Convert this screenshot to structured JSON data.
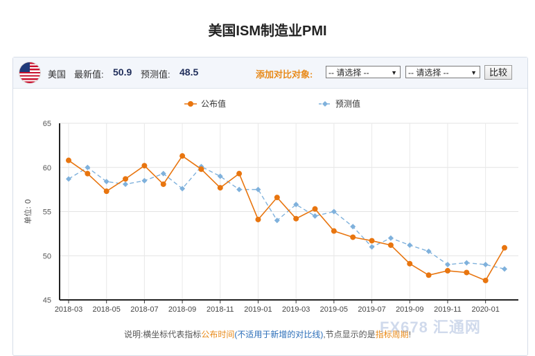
{
  "page": {
    "title": "美国ISM制造业PMI"
  },
  "toolbar": {
    "country": "美国",
    "latest_label": "最新值:",
    "latest_value": "50.9",
    "forecast_label": "预测值:",
    "forecast_value": "48.5",
    "compare_label": "添加对比对象:",
    "select1": "-- 请选择 --",
    "select2": "-- 请选择 --",
    "compare_button": "比较"
  },
  "footnote": {
    "prefix": "说明:横坐标代表指标",
    "highlight1": "公布时间",
    "paren": "(不适用于新增的对比线)",
    "middle": ",节点显示的是",
    "highlight2": "指标周期",
    "suffix": "!"
  },
  "watermark": "FX678 汇通网",
  "chart_data": {
    "type": "line",
    "ylabel": "单位: 0",
    "ylim": [
      45,
      65
    ],
    "yticks": [
      45,
      50,
      55,
      60,
      65
    ],
    "x": [
      "2018-03",
      "2018-04",
      "2018-05",
      "2018-06",
      "2018-07",
      "2018-08",
      "2018-09",
      "2018-10",
      "2018-11",
      "2018-12",
      "2019-01",
      "2019-02",
      "2019-03",
      "2019-04",
      "2019-05",
      "2019-06",
      "2019-07",
      "2019-08",
      "2019-09",
      "2019-10",
      "2019-11",
      "2019-12",
      "2020-01",
      "2020-02"
    ],
    "xtick_labels": [
      "2018-03",
      "2018-05",
      "2018-07",
      "2018-09",
      "2018-11",
      "2019-01",
      "2019-03",
      "2019-05",
      "2019-07",
      "2019-09",
      "2019-11",
      "2020-01"
    ],
    "grid": true,
    "legend": "top-center",
    "series": [
      {
        "name": "公布值",
        "color": "#e8750f",
        "style": "solid",
        "values": [
          60.8,
          59.3,
          57.3,
          58.7,
          60.2,
          58.1,
          61.3,
          59.8,
          57.7,
          59.3,
          54.1,
          56.6,
          54.2,
          55.3,
          52.8,
          52.1,
          51.7,
          51.2,
          49.1,
          47.8,
          48.3,
          48.1,
          47.2,
          50.9
        ]
      },
      {
        "name": "预测值",
        "color": "#7fb1dc",
        "style": "dashed",
        "values": [
          58.7,
          60.0,
          58.4,
          58.1,
          58.5,
          59.3,
          57.6,
          60.1,
          59.0,
          57.5,
          57.5,
          54.0,
          55.8,
          54.5,
          55.0,
          53.3,
          51.0,
          52.0,
          51.2,
          50.5,
          49.0,
          49.2,
          49.0,
          48.5
        ]
      }
    ]
  }
}
